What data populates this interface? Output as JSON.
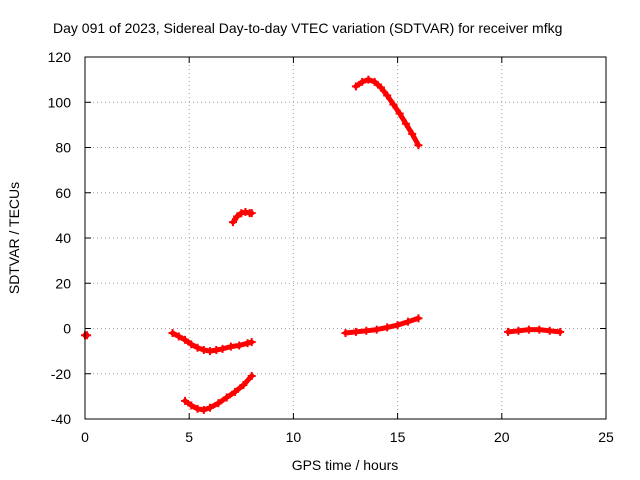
{
  "chart_data": {
    "type": "scatter",
    "title": "Day 091 of 2023, Sidereal Day-to-day VTEC variation (SDTVAR) for receiver mfkg",
    "xlabel": "GPS time / hours",
    "ylabel": "SDTVAR / TECUs",
    "xlim": [
      0,
      25
    ],
    "ylim": [
      -40,
      120
    ],
    "xticks": [
      0,
      5,
      10,
      15,
      20,
      25
    ],
    "yticks": [
      -40,
      -20,
      0,
      20,
      40,
      60,
      80,
      100,
      120
    ],
    "grid": true,
    "legend": "none",
    "color": "#ff0000",
    "series": [
      {
        "x": [
          0.0,
          0.1
        ],
        "y": [
          -3,
          -3
        ]
      },
      {
        "x": [
          4.2,
          4.5,
          4.8,
          5.1,
          5.4,
          5.7,
          6.0,
          6.3,
          6.6,
          7.0,
          7.4,
          7.8,
          8.0
        ],
        "y": [
          -2,
          -3.5,
          -5,
          -7,
          -8.5,
          -9.5,
          -10,
          -9.5,
          -9,
          -8,
          -7.5,
          -6.5,
          -6
        ]
      },
      {
        "x": [
          4.8,
          5.1,
          5.4,
          5.7,
          6.0,
          6.4,
          6.8,
          7.2,
          7.6,
          8.0
        ],
        "y": [
          -32,
          -34,
          -35.5,
          -36,
          -35,
          -33,
          -30.5,
          -28,
          -25,
          -21
        ]
      },
      {
        "x": [
          7.1,
          7.3,
          7.5,
          7.7,
          7.9,
          8.0
        ],
        "y": [
          47,
          49.5,
          51,
          51.5,
          51,
          51
        ]
      },
      {
        "x": [
          12.5,
          13.0,
          13.5,
          14.0,
          14.5,
          15.0,
          15.5,
          16.0
        ],
        "y": [
          -2,
          -1.5,
          -1,
          -0.5,
          0.5,
          1.5,
          3,
          4.5
        ]
      },
      {
        "x": [
          13.0,
          13.3,
          13.6,
          13.9,
          14.2,
          14.5,
          14.8,
          15.1,
          15.4,
          15.7,
          16.0
        ],
        "y": [
          107,
          109,
          110,
          109,
          106.5,
          103,
          99,
          95,
          90.5,
          86,
          81
        ]
      },
      {
        "x": [
          20.3,
          20.8,
          21.3,
          21.8,
          22.3,
          22.8
        ],
        "y": [
          -1.5,
          -1,
          -0.5,
          -0.5,
          -1,
          -1.5
        ]
      }
    ]
  }
}
